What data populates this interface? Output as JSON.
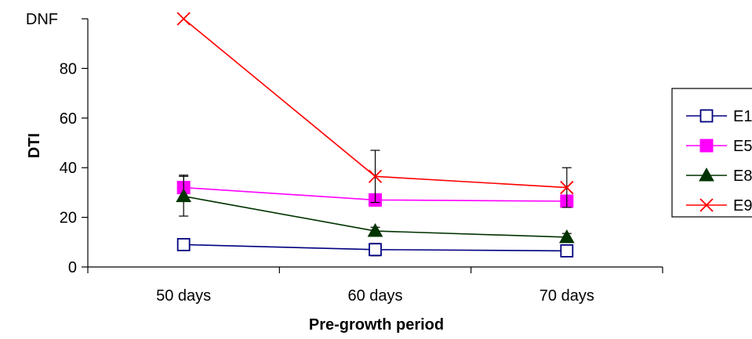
{
  "chart_data": {
    "type": "line",
    "title": "",
    "xlabel": "Pre-growth period",
    "ylabel": "DTI",
    "categories": [
      "50 days",
      "60 days",
      "70 days"
    ],
    "ylim": [
      0,
      100
    ],
    "yticks": [
      0,
      20,
      40,
      60,
      80
    ],
    "ytick_top_label": "DNF",
    "grid": false,
    "legend": "right",
    "series": [
      {
        "name": "E1",
        "color": "#000080",
        "marker": "open-square",
        "values": [
          9,
          7,
          6.5
        ],
        "errors": [
          1.5,
          2.5,
          2
        ]
      },
      {
        "name": "E5",
        "color": "#ff00ff",
        "marker": "filled-square",
        "values": [
          32,
          27,
          26.5
        ],
        "errors": [
          5,
          2.5,
          2
        ]
      },
      {
        "name": "E8",
        "color": "#003300",
        "marker": "triangle",
        "values": [
          28.5,
          14.5,
          12
        ],
        "errors": [
          8,
          1.5,
          1.5
        ]
      },
      {
        "name": "E9",
        "color": "#ff0000",
        "marker": "x",
        "values": [
          100,
          36.5,
          32
        ],
        "errors": [
          0,
          10.5,
          8
        ]
      }
    ]
  }
}
